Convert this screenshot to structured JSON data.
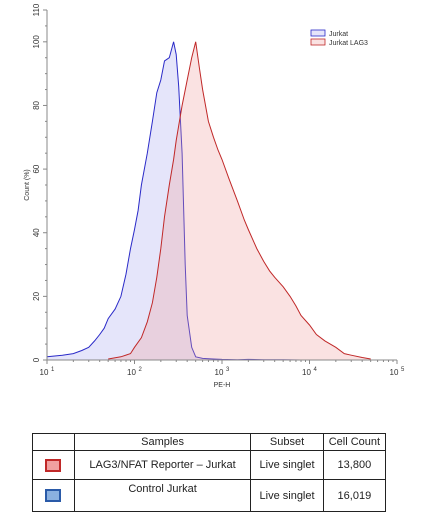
{
  "chart_data": {
    "type": "area",
    "xlabel": "PE-H",
    "ylabel": "Count (%)",
    "xscale": "log",
    "xlim": [
      10,
      100000
    ],
    "ylim": [
      0,
      110
    ],
    "x_ticks": [
      {
        "value": 10,
        "base": "10",
        "exp": "1"
      },
      {
        "value": 100,
        "base": "10",
        "exp": "2"
      },
      {
        "value": 1000,
        "base": "10",
        "exp": "3"
      },
      {
        "value": 10000,
        "base": "10",
        "exp": "4"
      },
      {
        "value": 100000,
        "base": "10",
        "exp": "5"
      }
    ],
    "y_ticks": [
      "0",
      "20",
      "40",
      "60",
      "80",
      "100",
      "110"
    ],
    "legend_position": "top-right",
    "series": [
      {
        "name": "Jurkat",
        "stroke": "#2a2ac8",
        "fill": "rgba(150,150,235,0.25)",
        "x": [
          10,
          15,
          20,
          25,
          30,
          35,
          40,
          45,
          50,
          60,
          70,
          80,
          90,
          100,
          110,
          120,
          140,
          160,
          180,
          200,
          220,
          250,
          280,
          300,
          320,
          350,
          380,
          400,
          450,
          500,
          600,
          800,
          1000,
          1500,
          2000,
          3000,
          5000,
          8000,
          10000
        ],
        "y": [
          1,
          1.5,
          2,
          3,
          4,
          6,
          8,
          10,
          13,
          16,
          20,
          27,
          35,
          41,
          47,
          55,
          65,
          75,
          84,
          88,
          94,
          95,
          100,
          96,
          86,
          65,
          30,
          14,
          4,
          1,
          0.5,
          0.3,
          0.2,
          0.1,
          0.2,
          0.1,
          0.1,
          0,
          0
        ]
      },
      {
        "name": "Jurkat LAG3",
        "stroke": "#c02828",
        "fill": "rgba(240,160,160,0.3)",
        "x": [
          50,
          70,
          90,
          100,
          120,
          140,
          160,
          180,
          200,
          220,
          250,
          280,
          300,
          350,
          400,
          450,
          500,
          550,
          600,
          700,
          800,
          900,
          1000,
          1200,
          1500,
          1800,
          2000,
          2500,
          3000,
          3500,
          4000,
          5000,
          6000,
          7000,
          8000,
          10000,
          12000,
          15000,
          20000,
          25000,
          30000,
          40000,
          50000
        ],
        "y": [
          0.3,
          1,
          2,
          4,
          7,
          12,
          18,
          26,
          35,
          45,
          55,
          63,
          69,
          80,
          88,
          95,
          100,
          92,
          85,
          75,
          70,
          66,
          63,
          57,
          50,
          44,
          41,
          35,
          31,
          28,
          26,
          23,
          20,
          17,
          14,
          11,
          8,
          6,
          4,
          2,
          1.5,
          0.8,
          0.3
        ]
      }
    ]
  },
  "table": {
    "headers": [
      "",
      "Samples",
      "Subset",
      "Cell Count"
    ],
    "rows": [
      {
        "swatch": "#c02828",
        "swatch_fill": "#f0a0a0",
        "sample": "LAG3/NFAT Reporter – Jurkat",
        "subset": "Live singlet",
        "count": "13,800"
      },
      {
        "swatch": "#2a5aa8",
        "swatch_fill": "#8ab0e0",
        "sample": "Control Jurkat",
        "subset": "Live singlet",
        "count": "16,019"
      }
    ]
  }
}
